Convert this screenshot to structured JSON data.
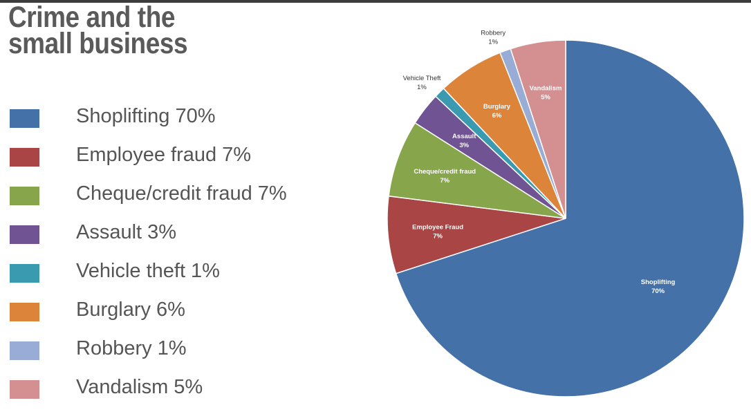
{
  "title_lines": [
    "Crime and the",
    "small business"
  ],
  "legend": [
    {
      "label": "Shoplifting 70%",
      "color": "#4472a8"
    },
    {
      "label": "Employee fraud 7%",
      "color": "#a94545"
    },
    {
      "label": "Cheque/credit fraud 7%",
      "color": "#87a64b"
    },
    {
      "label": "Assault 3%",
      "color": "#6f5393"
    },
    {
      "label": "Vehicle theft 1%",
      "color": "#3a9bb0"
    },
    {
      "label": "Burglary 6%",
      "color": "#dc843a"
    },
    {
      "label": "Robbery 1%",
      "color": "#98acd6"
    },
    {
      "label": "Vandalism 5%",
      "color": "#d49090"
    }
  ],
  "chart_data": {
    "type": "pie",
    "start_angle_deg": 0,
    "direction": "clockwise",
    "slices": [
      {
        "label": "Shoplifting",
        "value": 70,
        "value_label": "70%",
        "color": "#4472a8",
        "label_placement": "inside"
      },
      {
        "label": "Employee Fraud",
        "value": 7,
        "value_label": "7%",
        "color": "#a94545",
        "label_placement": "inside"
      },
      {
        "label": "Cheque/credit fraud",
        "value": 7,
        "value_label": "7%",
        "color": "#87a64b",
        "label_placement": "inside"
      },
      {
        "label": "Assault",
        "value": 3,
        "value_label": "3%",
        "color": "#6f5393",
        "label_placement": "inside"
      },
      {
        "label": "Vehicle Theft",
        "value": 1,
        "value_label": "1%",
        "color": "#3a9bb0",
        "label_placement": "outside"
      },
      {
        "label": "Burglary",
        "value": 6,
        "value_label": "6%",
        "color": "#dc843a",
        "label_placement": "inside"
      },
      {
        "label": "Robbery",
        "value": 1,
        "value_label": "1%",
        "color": "#98acd6",
        "label_placement": "outside"
      },
      {
        "label": "Vandalism",
        "value": 5,
        "value_label": "5%",
        "color": "#d49090",
        "label_placement": "inside"
      }
    ]
  }
}
